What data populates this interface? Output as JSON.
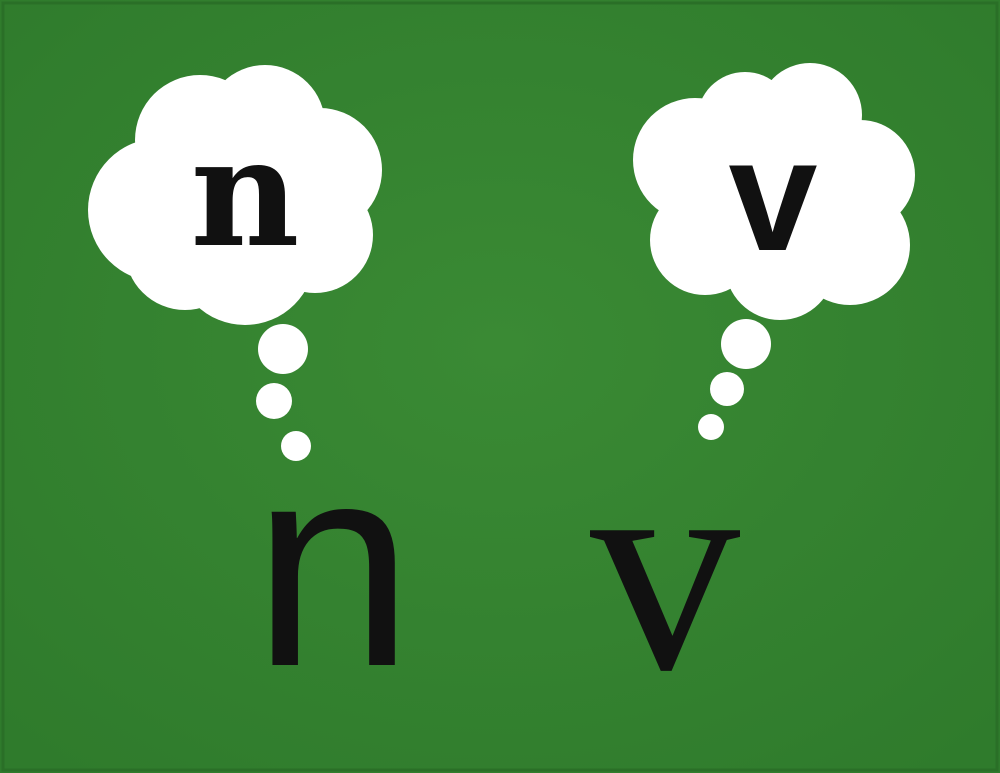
{
  "painting": {
    "background_color": "#3a8a34",
    "cloud_color": "#ffffff",
    "ink_color": "#111111"
  },
  "left_figure": {
    "thought_letter": "n",
    "letter": "n"
  },
  "right_figure": {
    "thought_letter": "v",
    "letter": "v"
  }
}
